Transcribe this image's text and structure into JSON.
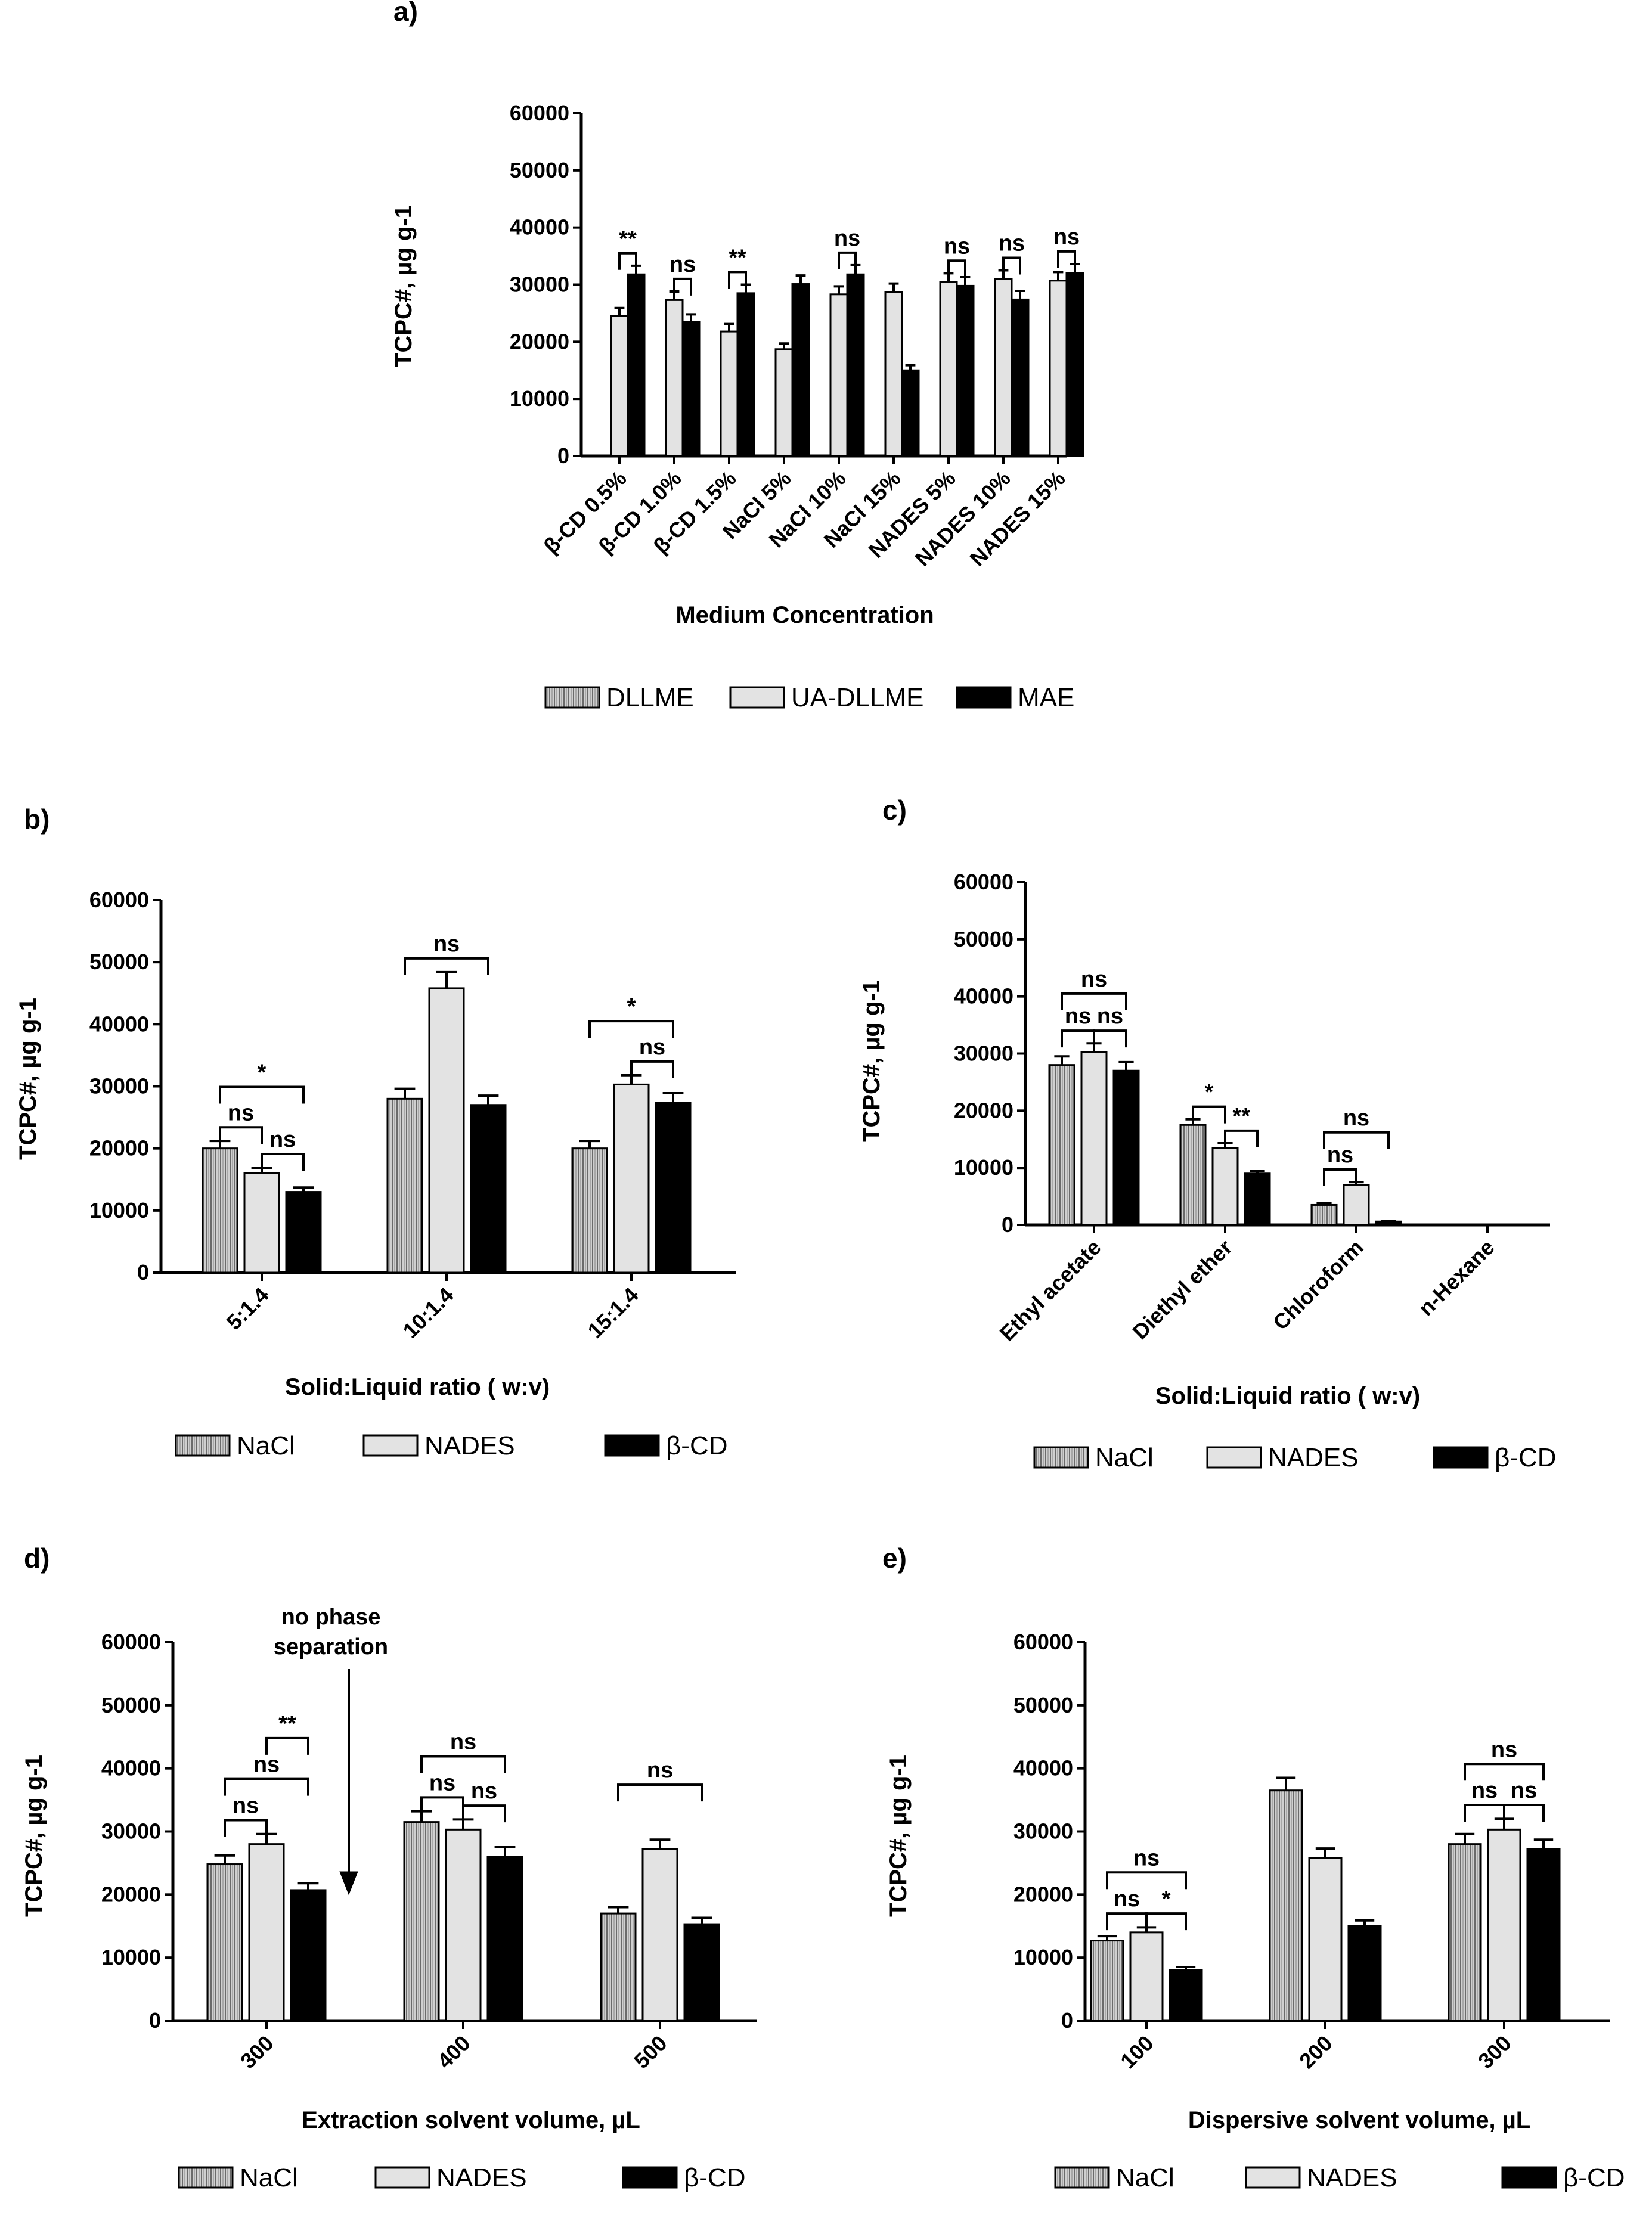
{
  "chart_data": [
    {
      "id": "a",
      "panel_label": "a)",
      "type": "bar",
      "ylabel": "TCPC#, µg g-1",
      "xlabel": "Medium Concentration",
      "ylim": [
        0,
        60000
      ],
      "yticks": [
        0,
        10000,
        20000,
        30000,
        40000,
        50000,
        60000
      ],
      "categories": [
        "β-CD 0.5%",
        "β-CD 1.0%",
        "β-CD 1.5%",
        "NaCl 5%",
        "NaCl 10%",
        "NaCl 15%",
        "NADES 5%",
        "NADES 10%",
        "NADES 15%"
      ],
      "series": [
        {
          "name": "DLLME",
          "pattern": "hatch",
          "values": [
            null,
            null,
            null,
            null,
            null,
            null,
            null,
            null,
            null
          ],
          "errors": []
        },
        {
          "name": "UA-DLLME",
          "pattern": "light",
          "values": [
            24500,
            27300,
            21800,
            18700,
            28300,
            28700,
            30500,
            31000,
            30700
          ],
          "errors": [
            1400,
            1500,
            1300,
            1000,
            1400,
            1500,
            1500,
            1500,
            1500
          ]
        },
        {
          "name": "MAE",
          "pattern": "dark",
          "values": [
            31800,
            23500,
            28500,
            30100,
            31800,
            15000,
            29800,
            27400,
            32000
          ],
          "errors": [
            1500,
            1300,
            1500,
            1500,
            1600,
            900,
            1500,
            1500,
            1600
          ]
        }
      ],
      "legend": [
        "DLLME",
        "UA-DLLME",
        "MAE"
      ],
      "annotations": [
        {
          "text": "**",
          "group": 0
        },
        {
          "text": "ns",
          "group": 1
        },
        {
          "text": "**",
          "group": 2
        },
        {
          "text": "ns",
          "group": 4
        },
        {
          "text": "ns",
          "group": 6
        },
        {
          "text": "ns",
          "group": 7
        },
        {
          "text": "ns",
          "group": 8
        }
      ]
    },
    {
      "id": "b",
      "panel_label": "b)",
      "type": "bar",
      "ylabel": "TCPC#, µg g-1",
      "xlabel": "Solid:Liquid ratio ( w:v)",
      "ylim": [
        0,
        60000
      ],
      "yticks": [
        0,
        10000,
        20000,
        30000,
        40000,
        50000,
        60000
      ],
      "categories": [
        "5:1.4",
        "10:1.4",
        "15:1.4"
      ],
      "series": [
        {
          "name": "NaCl",
          "pattern": "hatch",
          "values": [
            20000,
            28000,
            20000
          ],
          "errors": [
            1200,
            1600,
            1200
          ]
        },
        {
          "name": "NADES",
          "pattern": "light",
          "values": [
            16000,
            45800,
            30300
          ],
          "errors": [
            900,
            2600,
            1500
          ]
        },
        {
          "name": "β-CD",
          "pattern": "dark",
          "values": [
            13000,
            27000,
            27400
          ],
          "errors": [
            700,
            1500,
            1500
          ]
        }
      ],
      "legend": [
        "NaCl",
        "NADES",
        "β-CD"
      ],
      "annotations": [
        {
          "text": "ns",
          "group": 0,
          "pair": "0-1",
          "level": 1
        },
        {
          "text": "ns",
          "group": 0,
          "pair": "1-2",
          "level": 1
        },
        {
          "text": "*",
          "group": 0,
          "pair": "0-2",
          "level": 2
        },
        {
          "text": "ns",
          "group": 1,
          "pair": "0-2",
          "level": 1
        },
        {
          "text": "ns",
          "group": 2,
          "pair": "1-2",
          "level": 1
        },
        {
          "text": "*",
          "group": 2,
          "pair": "0-2",
          "level": 2
        }
      ]
    },
    {
      "id": "c",
      "panel_label": "c)",
      "type": "bar",
      "ylabel": "TCPC#, µg g-1",
      "xlabel": "Solid:Liquid ratio ( w:v)",
      "ylim": [
        0,
        60000
      ],
      "yticks": [
        0,
        10000,
        20000,
        30000,
        40000,
        50000,
        60000
      ],
      "categories": [
        "Ethyl acetate",
        "Diethyl ether",
        "Chloroform",
        "n-Hexane"
      ],
      "series": [
        {
          "name": "NaCl",
          "pattern": "hatch",
          "values": [
            28000,
            17500,
            3500,
            0
          ],
          "errors": [
            1500,
            1000,
            300,
            0
          ]
        },
        {
          "name": "NADES",
          "pattern": "light",
          "values": [
            30300,
            13500,
            7000,
            0
          ],
          "errors": [
            1500,
            800,
            500,
            0
          ]
        },
        {
          "name": "β-CD",
          "pattern": "dark",
          "values": [
            27000,
            9000,
            600,
            0
          ],
          "errors": [
            1500,
            500,
            100,
            0
          ]
        }
      ],
      "legend": [
        "NaCl",
        "NADES",
        "β-CD"
      ],
      "annotations": [
        {
          "text": "ns",
          "group": 0,
          "pair": "0-1",
          "level": 1
        },
        {
          "text": "ns",
          "group": 0,
          "pair": "1-2",
          "level": 1
        },
        {
          "text": "ns",
          "group": 0,
          "pair": "0-2",
          "level": 2
        },
        {
          "text": "*",
          "group": 1,
          "pair": "0-1",
          "level": 1
        },
        {
          "text": "**",
          "group": 1,
          "pair": "1-2",
          "level": 1
        },
        {
          "text": "ns",
          "group": 2,
          "pair": "0-1",
          "level": 1
        },
        {
          "text": "ns",
          "group": 2,
          "pair": "0-2",
          "level": 2
        }
      ]
    },
    {
      "id": "d",
      "panel_label": "d)",
      "type": "bar",
      "ylabel": "TCPC#, µg g-1",
      "xlabel": "Extraction solvent volume,  µL",
      "ylim": [
        0,
        60000
      ],
      "yticks": [
        0,
        10000,
        20000,
        30000,
        40000,
        50000,
        60000
      ],
      "categories": [
        "300",
        "400",
        "500"
      ],
      "series": [
        {
          "name": "NaCl",
          "pattern": "hatch",
          "values": [
            24800,
            31500,
            17000
          ],
          "errors": [
            1400,
            1700,
            1000
          ]
        },
        {
          "name": "NADES",
          "pattern": "light",
          "values": [
            28000,
            30300,
            27200
          ],
          "errors": [
            1600,
            1600,
            1500
          ]
        },
        {
          "name": "β-CD",
          "pattern": "dark",
          "values": [
            20700,
            26000,
            15300
          ],
          "errors": [
            1100,
            1500,
            1000
          ]
        }
      ],
      "legend": [
        "NaCl",
        "NADES",
        "β-CD"
      ],
      "note": "no phase separation",
      "annotations": [
        {
          "text": "ns",
          "group": 0,
          "pair": "0-1",
          "level": 1
        },
        {
          "text": "ns",
          "group": 0,
          "pair": "0-2",
          "level": 2
        },
        {
          "text": "**",
          "group": 0,
          "pair": "1-2",
          "level": 3
        },
        {
          "text": "ns",
          "group": 1,
          "pair": "0-1",
          "level": 1
        },
        {
          "text": "ns",
          "group": 1,
          "pair": "1-2",
          "level": 1
        },
        {
          "text": "ns",
          "group": 1,
          "pair": "0-2",
          "level": 2
        },
        {
          "text": "ns",
          "group": 2,
          "pair": "0-2",
          "level": 2
        }
      ]
    },
    {
      "id": "e",
      "panel_label": "e)",
      "type": "bar",
      "ylabel": "TCPC#, µg g-1",
      "xlabel": "Dispersive solvent volume,  µL",
      "ylim": [
        0,
        60000
      ],
      "yticks": [
        0,
        10000,
        20000,
        30000,
        40000,
        50000,
        60000
      ],
      "categories": [
        "100",
        "200",
        "300"
      ],
      "series": [
        {
          "name": "NaCl",
          "pattern": "hatch",
          "values": [
            12700,
            36500,
            28000
          ],
          "errors": [
            700,
            2000,
            1600
          ]
        },
        {
          "name": "NADES",
          "pattern": "light",
          "values": [
            14000,
            25800,
            30300
          ],
          "errors": [
            800,
            1500,
            1700
          ]
        },
        {
          "name": "β-CD",
          "pattern": "dark",
          "values": [
            8000,
            15000,
            27200
          ],
          "errors": [
            500,
            900,
            1500
          ]
        }
      ],
      "legend": [
        "NaCl",
        "NADES",
        "β-CD"
      ],
      "annotations": [
        {
          "text": "ns",
          "group": 0,
          "pair": "0-1",
          "level": 1
        },
        {
          "text": "*",
          "group": 0,
          "pair": "1-2",
          "level": 1
        },
        {
          "text": "ns",
          "group": 0,
          "pair": "0-2",
          "level": 2
        },
        {
          "text": "ns",
          "group": 2,
          "pair": "0-1",
          "level": 1
        },
        {
          "text": "ns",
          "group": 2,
          "pair": "1-2",
          "level": 1
        },
        {
          "text": "ns",
          "group": 2,
          "pair": "0-2",
          "level": 2
        }
      ]
    }
  ]
}
